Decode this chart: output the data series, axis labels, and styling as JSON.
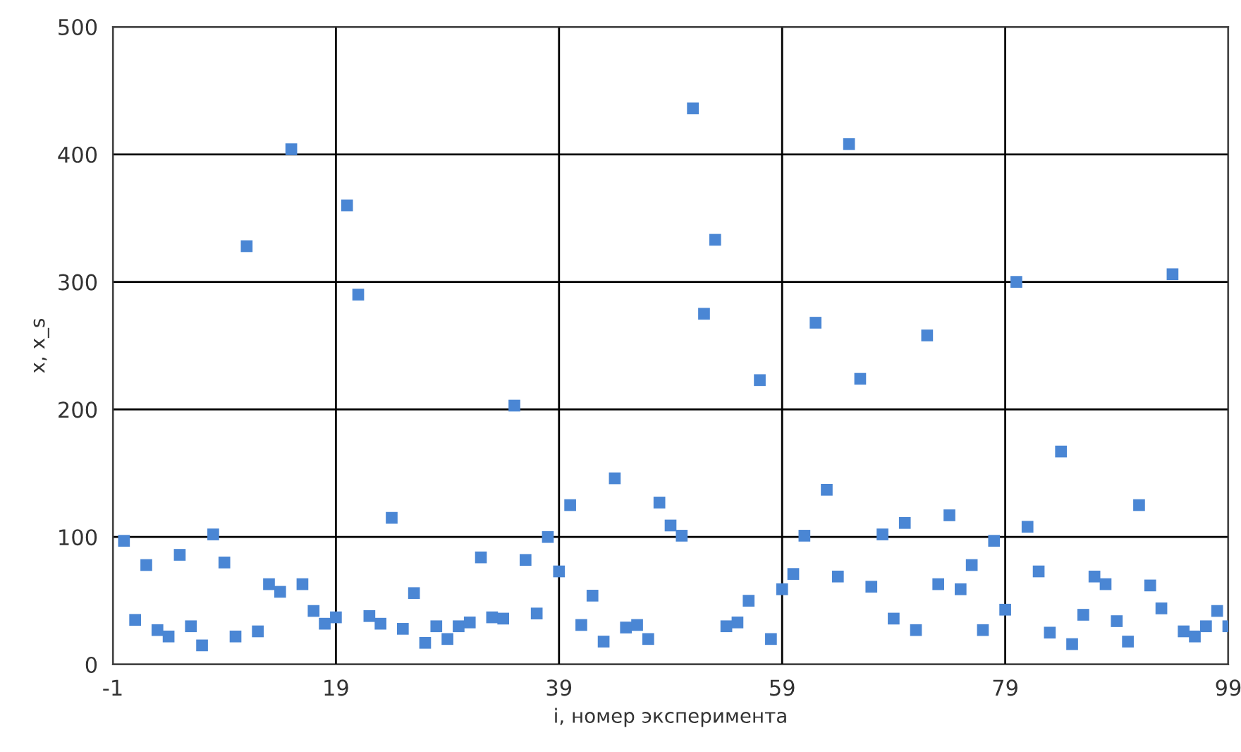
{
  "chart_data": {
    "type": "scatter",
    "xlabel": "i, номер эксперимента",
    "ylabel": "x, x_s",
    "x": [
      0,
      1,
      2,
      3,
      4,
      5,
      6,
      7,
      8,
      9,
      10,
      11,
      12,
      13,
      14,
      15,
      16,
      17,
      18,
      19,
      20,
      21,
      22,
      23,
      24,
      25,
      26,
      27,
      28,
      29,
      30,
      31,
      32,
      33,
      34,
      35,
      36,
      37,
      38,
      39,
      40,
      41,
      42,
      43,
      44,
      45,
      46,
      47,
      48,
      49,
      50,
      51,
      52,
      53,
      54,
      55,
      56,
      57,
      58,
      59,
      60,
      61,
      62,
      63,
      64,
      65,
      66,
      67,
      68,
      69,
      70,
      71,
      72,
      73,
      74,
      75,
      76,
      77,
      78,
      79,
      80,
      81,
      82,
      83,
      84,
      85,
      86,
      87,
      88,
      89,
      90,
      91,
      92,
      93,
      94,
      95,
      96,
      97,
      98,
      99
    ],
    "series": [
      {
        "color": "#4a86d4",
        "values": [
          97,
          35,
          78,
          27,
          22,
          86,
          30,
          15,
          102,
          80,
          22,
          328,
          26,
          63,
          57,
          404,
          63,
          42,
          32,
          37,
          360,
          290,
          38,
          32,
          115,
          28,
          56,
          17,
          30,
          20,
          30,
          33,
          84,
          37,
          36,
          203,
          82,
          40,
          100,
          73,
          125,
          31,
          54,
          18,
          146,
          29,
          31,
          20,
          127,
          109,
          101,
          436,
          275,
          333,
          30,
          33,
          50,
          223,
          20,
          59,
          71,
          101,
          268,
          137,
          69,
          408,
          224,
          61,
          102,
          36,
          111,
          27,
          258,
          63,
          117,
          59,
          78,
          27,
          97,
          43,
          300,
          108,
          73,
          25,
          167,
          16,
          39,
          69,
          63,
          34,
          18,
          125,
          62,
          44,
          306,
          26,
          22,
          30,
          42,
          30
        ]
      }
    ],
    "xlim": [
      -1,
      99
    ],
    "xticks": [
      -1,
      19,
      39,
      59,
      79,
      99
    ],
    "ylim": [
      0,
      500
    ],
    "yticks": [
      0,
      100,
      200,
      300,
      400,
      500
    ],
    "grid": true,
    "marker": "square",
    "legend": false
  }
}
